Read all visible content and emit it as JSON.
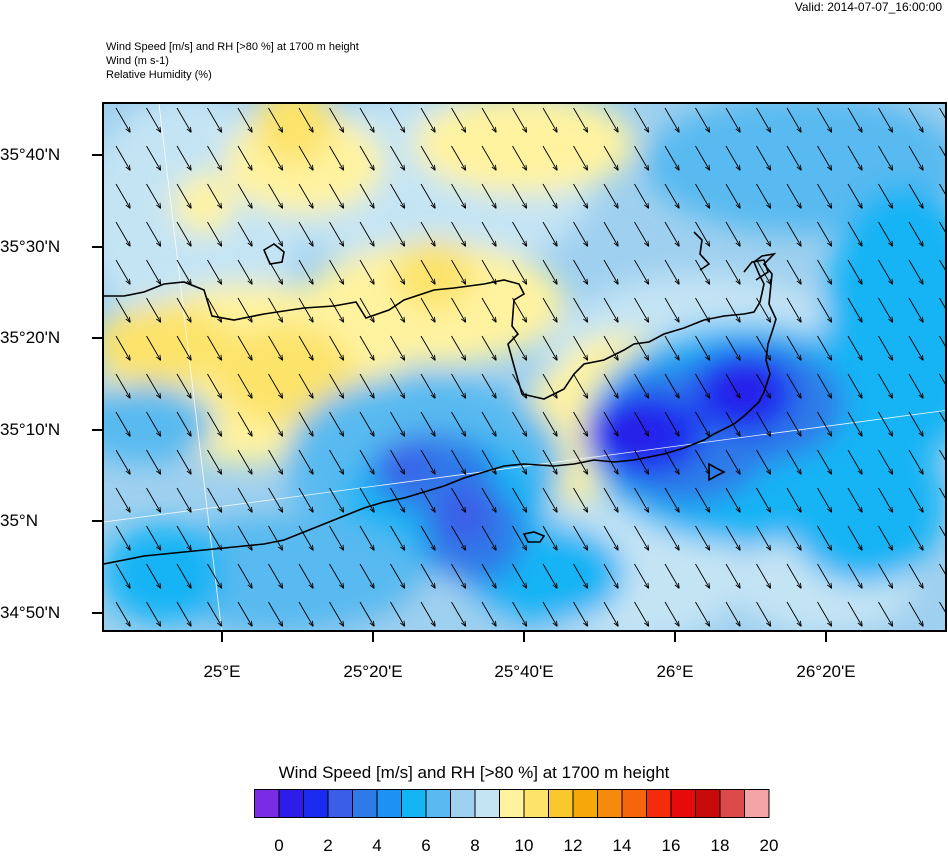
{
  "valid_time": "Valid: 2014-07-07_16:00:00",
  "header": {
    "line1": "Wind Speed [m/s] and RH [>80 %] at 1700 m height",
    "line2": "Wind   (m s-1)",
    "line3": "Relative Humidity   (%)"
  },
  "map": {
    "lat_labels": [
      "35°40'N",
      "35°30'N",
      "35°20'N",
      "35°10'N",
      "35°N",
      "34°50'N"
    ],
    "lon_labels": [
      "25°E",
      "25°20'E",
      "25°40'E",
      "26°E",
      "26°20'E"
    ],
    "arrow_direction": "south-southeast",
    "land_outline": "Crete (north & south coastlines)"
  },
  "colorbar": {
    "title": "Wind Speed [m/s] and RH [>80 %] at 1700 m height",
    "labels": [
      "0",
      "2",
      "4",
      "6",
      "8",
      "10",
      "12",
      "14",
      "16",
      "18",
      "20"
    ],
    "colors": [
      "#7a2be6",
      "#2c1ee8",
      "#1a2af0",
      "#3a5ee8",
      "#2d7ae8",
      "#1e92f4",
      "#14b4f5",
      "#58baf0",
      "#9fd0ef",
      "#c4e4f4",
      "#fff3a0",
      "#fce36a",
      "#f8c82c",
      "#f6a80a",
      "#f68a0c",
      "#f6640c",
      "#f42c0c",
      "#e60a0a",
      "#c80a0a",
      "#dc4a4a",
      "#f4a4a4"
    ]
  }
}
